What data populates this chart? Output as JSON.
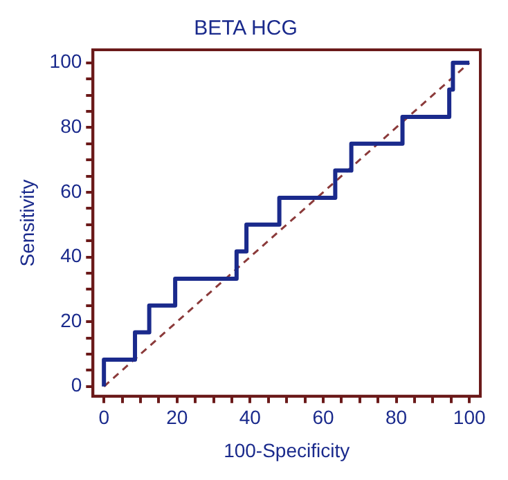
{
  "chart_data": {
    "type": "step",
    "title": "BETA HCG",
    "xlabel": "100-Specificity",
    "ylabel": "Sensitivity",
    "xlim": [
      -3,
      103
    ],
    "ylim": [
      -3,
      104
    ],
    "xticks": [
      0,
      {
        "value": 5,
        "label": null
      },
      {
        "value": 10,
        "label": null
      },
      {
        "value": 15,
        "label": null
      },
      20,
      {
        "value": 25,
        "label": null
      },
      {
        "value": 30,
        "label": null
      },
      {
        "value": 35,
        "label": null
      },
      40,
      {
        "value": 45,
        "label": null
      },
      {
        "value": 50,
        "label": null
      },
      {
        "value": 55,
        "label": null
      },
      60,
      {
        "value": 65,
        "label": null
      },
      {
        "value": 70,
        "label": null
      },
      {
        "value": 75,
        "label": null
      },
      80,
      {
        "value": 85,
        "label": null
      },
      {
        "value": 90,
        "label": null
      },
      {
        "value": 95,
        "label": null
      },
      100
    ],
    "yticks": [
      0,
      {
        "value": 5,
        "label": null
      },
      {
        "value": 10,
        "label": null
      },
      {
        "value": 15,
        "label": null
      },
      20,
      {
        "value": 25,
        "label": null
      },
      {
        "value": 30,
        "label": null
      },
      {
        "value": 35,
        "label": null
      },
      40,
      {
        "value": 45,
        "label": null
      },
      {
        "value": 50,
        "label": null
      },
      {
        "value": 55,
        "label": null
      },
      60,
      {
        "value": 65,
        "label": null
      },
      {
        "value": 70,
        "label": null
      },
      {
        "value": 75,
        "label": null
      },
      80,
      {
        "value": 85,
        "label": null
      },
      {
        "value": 90,
        "label": null
      },
      {
        "value": 95,
        "label": null
      },
      100
    ],
    "grid": false,
    "legend": false,
    "series": [
      {
        "color": "#1a2a8c",
        "x": [
          0,
          0,
          8.5,
          12.4,
          19.5,
          36.3,
          39,
          48,
          63.3,
          67.7,
          81.7,
          94.5,
          95.5,
          100
        ],
        "values": [
          0,
          8.3,
          16.7,
          25,
          33.3,
          41.7,
          50,
          58.3,
          66.7,
          75,
          83.3,
          91.7,
          100,
          100
        ]
      },
      {
        "type": "line",
        "line_style": "dashed",
        "color": "#8b3a3a",
        "x": [
          0,
          100
        ],
        "values": [
          0,
          100
        ]
      }
    ]
  }
}
